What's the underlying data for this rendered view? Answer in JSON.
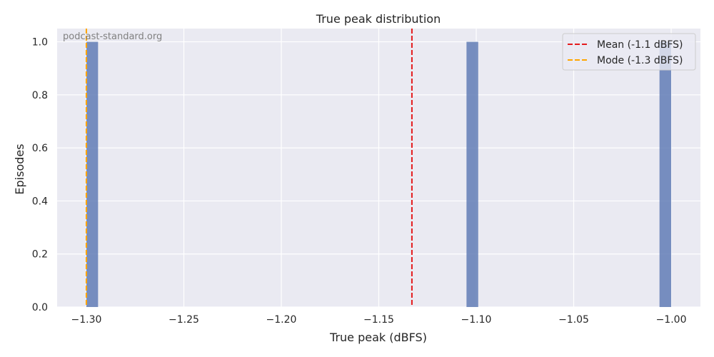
{
  "chart_data": {
    "type": "bar",
    "title": "True peak distribution",
    "xlabel": "True peak (dBFS)",
    "ylabel": "Episodes",
    "xlim": [
      -1.315,
      -0.985
    ],
    "ylim": [
      0,
      1.05
    ],
    "xticks": [
      -1.3,
      -1.25,
      -1.2,
      -1.15,
      -1.1,
      -1.05,
      -1.0
    ],
    "xtick_labels": [
      "−1.30",
      "−1.25",
      "−1.20",
      "−1.15",
      "−1.10",
      "−1.05",
      "−1.00"
    ],
    "yticks": [
      0.0,
      0.2,
      0.4,
      0.6,
      0.8,
      1.0
    ],
    "ytick_labels": [
      "0.0",
      "0.2",
      "0.4",
      "0.6",
      "0.8",
      "1.0"
    ],
    "bins": [
      {
        "start": -1.3,
        "end": -1.294,
        "count": 1
      },
      {
        "start": -1.105,
        "end": -1.099,
        "count": 1
      },
      {
        "start": -1.006,
        "end": -1.0,
        "count": 1
      }
    ],
    "reference_lines": [
      {
        "label": "Mean (-1.1 dBFS)",
        "x": -1.133,
        "color": "#e41a1c"
      },
      {
        "label": "Mode (-1.3 dBFS)",
        "x": -1.3,
        "color": "#ffa500"
      }
    ],
    "grid": true,
    "legend_position": "top-right",
    "watermark": "podcast-standard.org",
    "colors": {
      "background": "#eaeaf2",
      "grid": "#ffffff",
      "bar": "#5975b2"
    }
  }
}
